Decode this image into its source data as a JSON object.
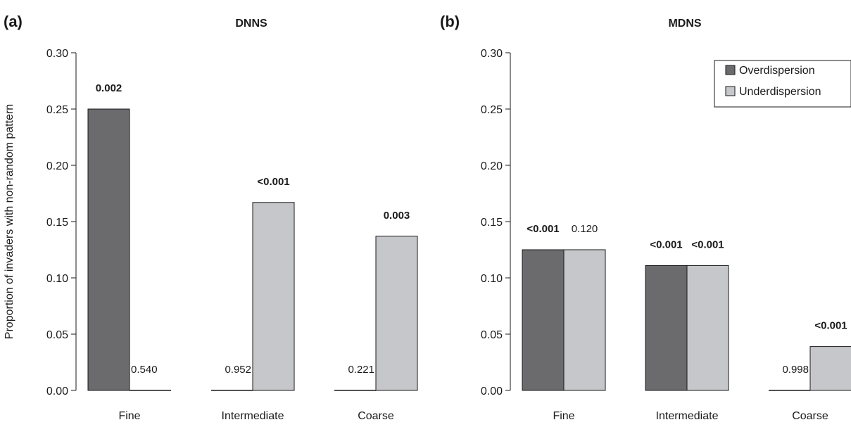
{
  "colors": {
    "overdispersion": "#6b6b6d",
    "underdispersion": "#c6c7cb",
    "stroke": "#1a1a1a"
  },
  "ylabel": "Proportion of invaders with non-random pattern",
  "chart_data": [
    {
      "type": "bar",
      "panel_label": "(a)",
      "title": "DNNS",
      "xlabel": "",
      "ylabel": "Proportion of invaders with non-random pattern",
      "ylim": [
        0,
        0.3
      ],
      "yticks": [
        "0.00",
        "0.05",
        "0.10",
        "0.15",
        "0.20",
        "0.25",
        "0.30"
      ],
      "categories": [
        "Fine",
        "Intermediate",
        "Coarse"
      ],
      "series": [
        {
          "name": "Overdispersion",
          "values": [
            0.25,
            0,
            0
          ],
          "annotations": [
            "0.002",
            "0.952",
            "0.221"
          ],
          "bold": [
            true,
            false,
            false
          ]
        },
        {
          "name": "Underdispersion",
          "values": [
            0,
            0.167,
            0.137
          ],
          "annotations": [
            "0.540",
            "<0.001",
            "0.003"
          ],
          "bold": [
            false,
            true,
            true
          ]
        }
      ],
      "grid": false,
      "legend": null
    },
    {
      "type": "bar",
      "panel_label": "(b)",
      "title": "MDNS",
      "xlabel": "",
      "ylabel": "",
      "ylim": [
        0,
        0.3
      ],
      "yticks": [
        "0.00",
        "0.05",
        "0.10",
        "0.15",
        "0.20",
        "0.25",
        "0.30"
      ],
      "categories": [
        "Fine",
        "Intermediate",
        "Coarse"
      ],
      "series": [
        {
          "name": "Overdispersion",
          "values": [
            0.125,
            0.111,
            0
          ],
          "annotations": [
            "<0.001",
            "<0.001",
            "0.998"
          ],
          "bold": [
            true,
            true,
            false
          ]
        },
        {
          "name": "Underdispersion",
          "values": [
            0.125,
            0.111,
            0.039
          ],
          "annotations": [
            "0.120",
            "<0.001",
            "<0.001"
          ],
          "bold": [
            false,
            true,
            true
          ]
        }
      ],
      "grid": false,
      "legend": {
        "placement": "top-right",
        "entries": [
          "Overdispersion",
          "Underdispersion"
        ]
      }
    }
  ]
}
